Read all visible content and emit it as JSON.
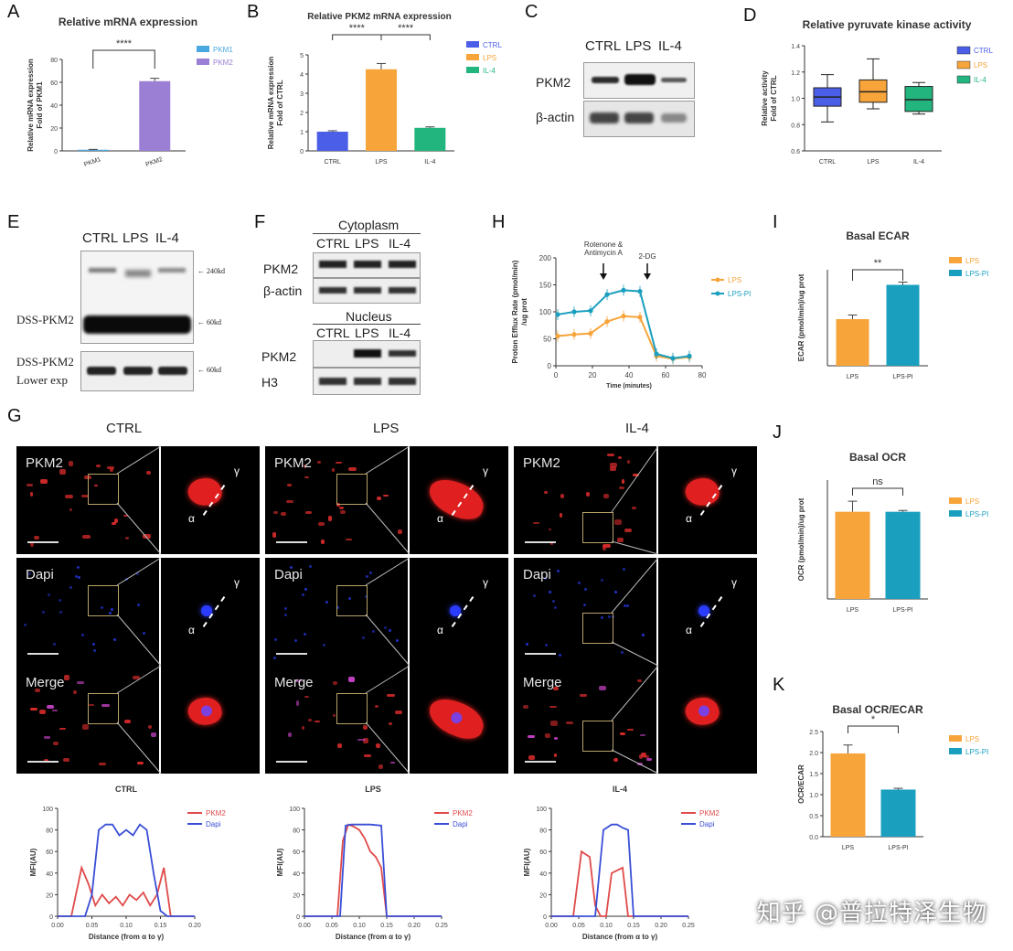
{
  "panel_letters": [
    "A",
    "B",
    "C",
    "D",
    "E",
    "F",
    "G",
    "H",
    "I",
    "J",
    "K"
  ],
  "colors": {
    "ctrl": "#4a5ee8",
    "lps": "#f7a43a",
    "il4": "#22b57e",
    "pkm1": "#4aa8e0",
    "pkm2": "#9b7fd4",
    "lps_pi": "#1a9fbf",
    "pkm2_line": "#e04a4a",
    "dapi_line": "#3a4fd6"
  },
  "chart_data": [
    {
      "panel": "A",
      "type": "bar",
      "title": "Relative mRNA expression",
      "ylabel": "Relative mRNA expression\nFold of PKM1",
      "categories": [
        "PKM1",
        "PKM2"
      ],
      "values": [
        1,
        61
      ],
      "error": [
        0.3,
        2.5
      ],
      "ylim": [
        0,
        80
      ],
      "yticks": [
        "0",
        "20",
        "40",
        "60",
        "80"
      ],
      "legend": [
        "PKM1",
        "PKM2"
      ],
      "significance": "****"
    },
    {
      "panel": "B",
      "type": "bar",
      "title": "Relative PKM2 mRNA expression",
      "ylabel": "Relative mRNA expression\nFold of CTRL",
      "categories": [
        "CTRL",
        "LPS",
        "IL-4"
      ],
      "values": [
        1.0,
        4.25,
        1.2
      ],
      "error": [
        0.05,
        0.3,
        0.05
      ],
      "ylim": [
        0,
        5
      ],
      "yticks": [
        "0",
        "1",
        "2",
        "3",
        "4",
        "5"
      ],
      "legend": [
        "CTRL",
        "LPS",
        "IL-4"
      ],
      "significance": [
        "****",
        "****"
      ]
    },
    {
      "panel": "D",
      "type": "box",
      "title": "Relative pyruvate kinase activity",
      "ylabel": "Relative activity\nFold of CTRL",
      "categories": [
        "CTRL",
        "LPS",
        "IL-4"
      ],
      "boxes": [
        {
          "min": 0.82,
          "q1": 0.94,
          "median": 1.01,
          "q3": 1.08,
          "max": 1.18
        },
        {
          "min": 0.92,
          "q1": 0.97,
          "median": 1.05,
          "q3": 1.14,
          "max": 1.3
        },
        {
          "min": 0.88,
          "q1": 0.9,
          "median": 0.99,
          "q3": 1.09,
          "max": 1.12
        }
      ],
      "ylim": [
        0.6,
        1.4
      ],
      "yticks": [
        "0.6",
        "0.8",
        "1.0",
        "1.2",
        "1.4"
      ],
      "legend": [
        "CTRL",
        "LPS",
        "IL-4"
      ]
    },
    {
      "panel": "H",
      "type": "line",
      "ylabel": "Proton Efflux Rate (pmol/min)\n/ug prot",
      "xlabel": "Time (minutes)",
      "xlim": [
        0,
        80
      ],
      "xticks": [
        "0",
        "20",
        "40",
        "60",
        "80"
      ],
      "ylim": [
        0,
        200
      ],
      "yticks": [
        "0",
        "50",
        "100",
        "150",
        "200"
      ],
      "annotations": [
        "Rotenone &\nAntimycin A",
        "2-DG"
      ],
      "series": [
        {
          "name": "LPS",
          "x": [
            1,
            10,
            19,
            28,
            37,
            46,
            55,
            64,
            73
          ],
          "y": [
            55,
            58,
            60,
            82,
            92,
            90,
            18,
            13,
            16
          ]
        },
        {
          "name": "LPS-PI",
          "x": [
            1,
            10,
            19,
            28,
            37,
            46,
            55,
            64,
            73
          ],
          "y": [
            95,
            100,
            102,
            132,
            140,
            138,
            22,
            14,
            18
          ]
        }
      ]
    },
    {
      "panel": "I",
      "type": "bar",
      "title": "Basal ECAR",
      "ylabel": "ECAR (pmol/min)/ug prot",
      "categories": [
        "LPS",
        "LPS-PI"
      ],
      "values": [
        3.4,
        5.9
      ],
      "error": [
        0.3,
        0.2
      ],
      "ylim": [
        0,
        7
      ],
      "legend": [
        "LPS",
        "LPS-PI"
      ],
      "significance": "**"
    },
    {
      "panel": "J",
      "type": "bar",
      "title": "Basal OCR",
      "ylabel": "OCR (pmol/min)/ug prot",
      "categories": [
        "LPS",
        "LPS-PI"
      ],
      "values": [
        6.6,
        6.6
      ],
      "error": [
        0.8,
        0.1
      ],
      "ylim": [
        0,
        9
      ],
      "legend": [
        "LPS",
        "LPS-PI"
      ],
      "significance": "ns"
    },
    {
      "panel": "K",
      "type": "bar",
      "title": "Basal OCR/ECAR",
      "ylabel": "OCR/ECAR",
      "categories": [
        "LPS",
        "LPS-PI"
      ],
      "values": [
        1.98,
        1.12
      ],
      "error": [
        0.2,
        0.03
      ],
      "ylim": [
        0,
        2.5
      ],
      "yticks": [
        "0.0",
        "0.5",
        "1.0",
        "1.5",
        "2.0",
        "2.5"
      ],
      "legend": [
        "LPS",
        "LPS-PI"
      ],
      "significance": "*"
    },
    {
      "panel": "G-CTRL",
      "type": "line",
      "title": "CTRL",
      "ylabel": "MFI(AU)",
      "xlabel": "Distance (from α to γ)",
      "xlim": [
        0,
        0.2
      ],
      "xticks": [
        "0.00",
        "0.05",
        "0.10",
        "0.15",
        "0.20"
      ],
      "ylim": [
        0,
        100
      ],
      "yticks": [
        "0",
        "20",
        "40",
        "60",
        "80",
        "100"
      ],
      "series": [
        {
          "name": "PKM2",
          "x": [
            0,
            0.02,
            0.035,
            0.045,
            0.055,
            0.065,
            0.075,
            0.085,
            0.095,
            0.105,
            0.115,
            0.125,
            0.135,
            0.145,
            0.155,
            0.165,
            0.2
          ],
          "y": [
            0,
            0,
            45,
            30,
            10,
            20,
            12,
            18,
            10,
            20,
            15,
            22,
            10,
            20,
            45,
            0,
            0
          ]
        },
        {
          "name": "Dapi",
          "x": [
            0,
            0.03,
            0.04,
            0.05,
            0.06,
            0.07,
            0.08,
            0.09,
            0.1,
            0.11,
            0.12,
            0.13,
            0.14,
            0.15,
            0.16,
            0.2
          ],
          "y": [
            0,
            0,
            0,
            20,
            80,
            85,
            85,
            75,
            80,
            75,
            85,
            80,
            40,
            5,
            0,
            0
          ]
        }
      ]
    },
    {
      "panel": "G-LPS",
      "type": "line",
      "title": "LPS",
      "ylabel": "MFI(AU)",
      "xlabel": "Distance (from α to γ)",
      "xlim": [
        0,
        0.25
      ],
      "xticks": [
        "0.00",
        "0.05",
        "0.10",
        "0.15",
        "0.20",
        "0.25"
      ],
      "ylim": [
        0,
        100
      ],
      "yticks": [
        "0",
        "20",
        "40",
        "60",
        "80",
        "100"
      ],
      "series": [
        {
          "name": "PKM2",
          "x": [
            0,
            0.06,
            0.07,
            0.08,
            0.09,
            0.1,
            0.11,
            0.12,
            0.13,
            0.14,
            0.15,
            0.25
          ],
          "y": [
            0,
            0,
            70,
            85,
            83,
            80,
            72,
            60,
            55,
            45,
            0,
            0
          ]
        },
        {
          "name": "Dapi",
          "x": [
            0,
            0.065,
            0.075,
            0.085,
            0.1,
            0.12,
            0.14,
            0.15,
            0.25
          ],
          "y": [
            0,
            0,
            84,
            85,
            85,
            85,
            84,
            0,
            0
          ]
        }
      ]
    },
    {
      "panel": "G-IL-4",
      "type": "line",
      "title": "IL-4",
      "ylabel": "MFI(AU)",
      "xlabel": "Distance (from α to γ)",
      "xlim": [
        0,
        0.25
      ],
      "xticks": [
        "0.00",
        "0.05",
        "0.10",
        "0.15",
        "0.20",
        "0.25"
      ],
      "ylim": [
        0,
        100
      ],
      "yticks": [
        "0",
        "20",
        "40",
        "60",
        "80",
        "100"
      ],
      "series": [
        {
          "name": "PKM2",
          "x": [
            0,
            0.04,
            0.055,
            0.07,
            0.08,
            0.09,
            0.1,
            0.11,
            0.13,
            0.14,
            0.25
          ],
          "y": [
            0,
            0,
            60,
            55,
            10,
            0,
            0,
            40,
            45,
            0,
            0
          ]
        },
        {
          "name": "Dapi",
          "x": [
            0,
            0.08,
            0.095,
            0.11,
            0.12,
            0.13,
            0.14,
            0.15,
            0.25
          ],
          "y": [
            0,
            0,
            80,
            85,
            85,
            82,
            80,
            0,
            0
          ]
        }
      ]
    }
  ],
  "blots": {
    "C": {
      "lanes": [
        "CTRL",
        "LPS",
        "IL-4"
      ],
      "rows": [
        "PKM2",
        "β-actin"
      ]
    },
    "E": {
      "lanes": [
        "CTRL",
        "LPS",
        "IL-4"
      ],
      "rows": [
        "DSS-PKM2",
        "DSS-PKM2"
      ],
      "row_sub": [
        "",
        "Lower exp"
      ],
      "markers": [
        "240kd",
        "60kd",
        "60kd"
      ]
    },
    "F": {
      "top_header": "Cytoplasm",
      "bottom_header": "Nucleus",
      "lanes": [
        "CTRL",
        "LPS",
        "IL-4"
      ],
      "top_rows": [
        "PKM2",
        "β-actin"
      ],
      "bottom_rows": [
        "PKM2",
        "H3"
      ]
    }
  },
  "micrographs": {
    "columns": [
      "CTRL",
      "LPS",
      "IL-4"
    ],
    "rows": [
      "PKM2",
      "Dapi",
      "Merge"
    ],
    "alpha": "α",
    "gamma": "γ"
  },
  "watermark": "知乎 @普拉特泽生物"
}
